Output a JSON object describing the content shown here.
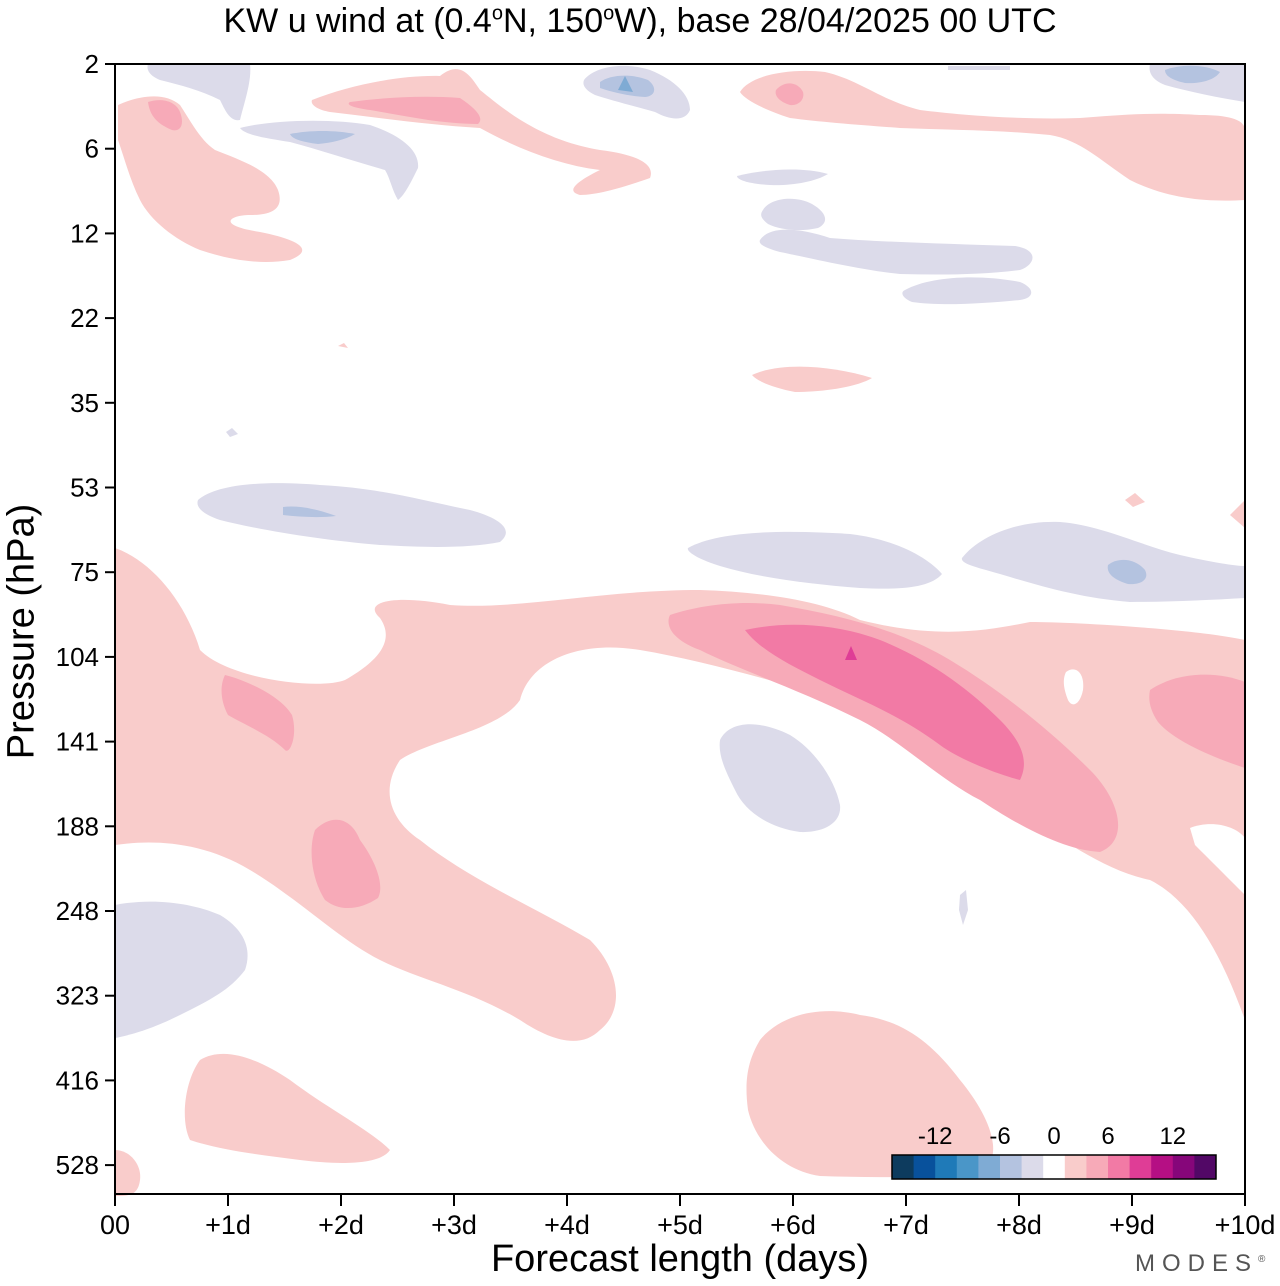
{
  "title_main": "KW u wind at (0.4",
  "title_deg1": "o",
  "title_mid": "N, 150",
  "title_deg2": "o",
  "title_end": "W),  base 28/04/2025  00 UTC",
  "brand": "MODES",
  "brand_mark": "®",
  "chart_data": {
    "type": "heatmap",
    "title": "KW u wind at (0.4°N, 150°W),  base 28/04/2025  00 UTC",
    "xlabel": "Forecast length (days)",
    "ylabel": "Pressure (hPa)",
    "x_ticks": [
      "00",
      "+1d",
      "+2d",
      "+3d",
      "+4d",
      "+5d",
      "+6d",
      "+7d",
      "+8d",
      "+9d",
      "+10d"
    ],
    "x_range": [
      0,
      10
    ],
    "y_ticks": [
      "2",
      "6",
      "12",
      "22",
      "35",
      "53",
      "75",
      "104",
      "141",
      "188",
      "248",
      "323",
      "416",
      "528"
    ],
    "y_scale": "log (pressure)",
    "y_range": [
      2,
      650
    ],
    "colorbar": {
      "tick_labels": [
        "-12",
        "-6",
        "0",
        "6",
        "12"
      ],
      "levels": [
        -14,
        -12,
        -10,
        -8,
        -6,
        -4,
        -2,
        2,
        4,
        6,
        8,
        10,
        12,
        14
      ],
      "colors": [
        "#0d3b5e",
        "#08519c",
        "#1f7ab8",
        "#4a96c8",
        "#7fabd4",
        "#b4c3e0",
        "#dcdbea",
        "#ffffff",
        "#f9cccb",
        "#f7aab8",
        "#f27aa5",
        "#df3d96",
        "#b50f84",
        "#86067a",
        "#520866"
      ],
      "placement": "bottom-right"
    },
    "features": [
      {
        "x": [
          0,
          4.5
        ],
        "p": [
          80,
          400
        ],
        "level": 2,
        "sign": "positive"
      },
      {
        "x": [
          4,
          10
        ],
        "p": [
          75,
          330
        ],
        "level": 2,
        "sign": "positive"
      },
      {
        "x": [
          5.5,
          8
        ],
        "p": [
          90,
          160
        ],
        "level": 6,
        "sign": "positive"
      },
      {
        "x": [
          6.4,
          6.6
        ],
        "p": [
          100,
          106
        ],
        "level": 10,
        "sign": "positive"
      },
      {
        "x": [
          5.8,
          6.5
        ],
        "p": [
          135,
          185
        ],
        "level": -2,
        "sign": "negative"
      },
      {
        "x": [
          0,
          1.2
        ],
        "p": [
          245,
          350
        ],
        "level": -2,
        "sign": "negative"
      },
      {
        "x": [
          0.8,
          3.4
        ],
        "p": [
          55,
          70
        ],
        "level": -2,
        "sign": "negative"
      },
      {
        "x": [
          5.1,
          10
        ],
        "p": [
          63,
          85
        ],
        "level": -2,
        "sign": "negative"
      },
      {
        "x": [
          5.7,
          8.2
        ],
        "p": [
          375,
          590
        ],
        "level": 2,
        "sign": "positive"
      },
      {
        "x": [
          0.6,
          2.5
        ],
        "p": [
          410,
          560
        ],
        "level": 2,
        "sign": "positive"
      },
      {
        "x": [
          0,
          1.7
        ],
        "p": [
          3,
          15
        ],
        "level": 2,
        "sign": "positive"
      },
      {
        "x": [
          1.7,
          3
        ],
        "p": [
          2.5,
          4
        ],
        "level": 4,
        "sign": "positive"
      },
      {
        "x": [
          5.5,
          10
        ],
        "p": [
          2,
          8
        ],
        "level": 2,
        "sign": "positive"
      },
      {
        "x": [
          5.7,
          8.1
        ],
        "p": [
          9,
          18
        ],
        "level": -2,
        "sign": "negative"
      },
      {
        "x": [
          4.2,
          5.1
        ],
        "p": [
          2,
          4
        ],
        "level": -4,
        "sign": "negative"
      }
    ]
  }
}
